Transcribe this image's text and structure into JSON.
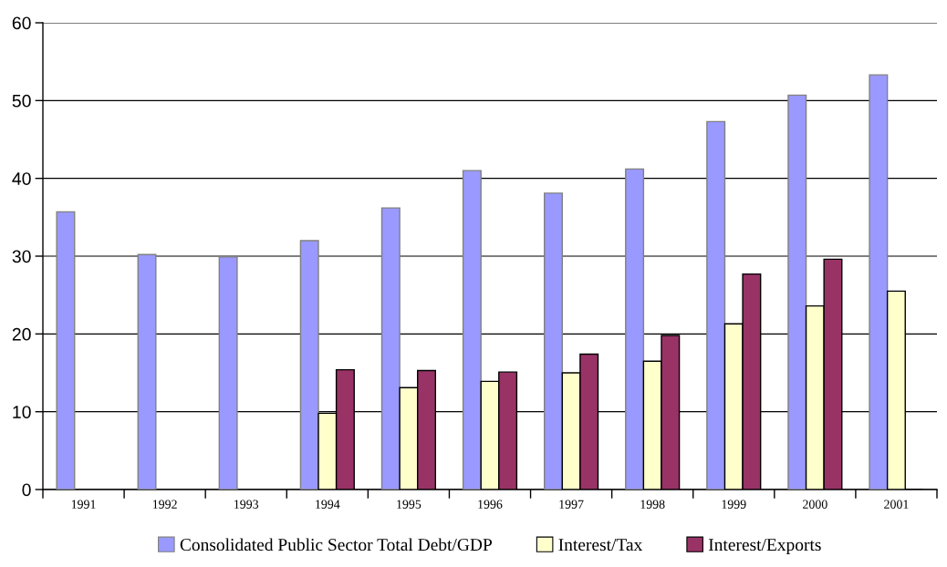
{
  "chart_data": {
    "type": "bar",
    "categories": [
      "1991",
      "1992",
      "1993",
      "1994",
      "1995",
      "1996",
      "1997",
      "1998",
      "1999",
      "2000",
      "2001"
    ],
    "series": [
      {
        "name": "Consolidated Public Sector Total Debt/GDP",
        "color": "#9999ff",
        "values": [
          35.7,
          30.2,
          29.9,
          32.0,
          36.2,
          41.0,
          38.1,
          41.2,
          47.3,
          50.7,
          53.3
        ]
      },
      {
        "name": "Interest/Tax",
        "color": "#ffffcc",
        "values": [
          null,
          null,
          null,
          9.8,
          13.1,
          13.9,
          15.0,
          16.5,
          21.3,
          23.6,
          25.5
        ]
      },
      {
        "name": "Interest/Exports",
        "color": "#993366",
        "values": [
          null,
          null,
          null,
          15.4,
          15.3,
          15.1,
          17.4,
          19.8,
          27.7,
          29.6,
          0
        ]
      }
    ],
    "ylim": [
      0,
      60
    ],
    "yticks": [
      0,
      10,
      20,
      30,
      40,
      50,
      60
    ],
    "grid": "y",
    "legend": "bottom"
  }
}
